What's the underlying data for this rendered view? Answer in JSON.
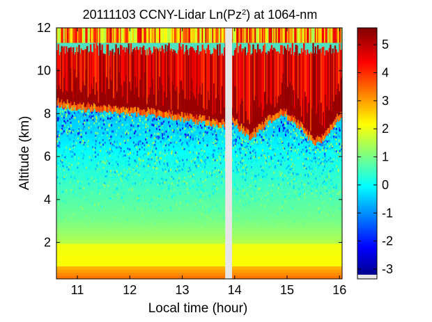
{
  "chart_data": {
    "type": "heatmap",
    "title": "20111103 CCNY-Lidar Ln(Pz",
    "title_superscript": "2",
    "title_suffix": ") at 1064-nm",
    "xlabel": "Local time (hour)",
    "ylabel": "Altitude (km)",
    "xlim": [
      10.6,
      16.05
    ],
    "ylim": [
      0.3,
      12
    ],
    "xticks": [
      11,
      12,
      13,
      14,
      15,
      16
    ],
    "yticks": [
      2,
      4,
      6,
      8,
      10,
      12
    ],
    "colorbar": {
      "range": [
        -3.2,
        5.6
      ],
      "ticks": [
        -3,
        -2,
        -1,
        0,
        1,
        2,
        3,
        4,
        5
      ],
      "colormap": "jet"
    },
    "data_gap": {
      "start": 13.82,
      "end": 13.95,
      "color": "#e6e6e6"
    },
    "cloud_base_km": {
      "x": [
        10.6,
        11.0,
        11.5,
        12.0,
        12.5,
        13.0,
        13.3,
        13.6,
        13.82,
        13.95,
        14.1,
        14.3,
        14.6,
        14.9,
        15.2,
        15.5,
        15.7,
        16.0
      ],
      "values": [
        8.4,
        8.2,
        8.1,
        8.0,
        7.9,
        7.7,
        7.6,
        7.5,
        7.4,
        7.6,
        7.2,
        6.8,
        7.5,
        8.0,
        7.4,
        6.6,
        6.8,
        7.8
      ]
    },
    "cloud_top_km": 11.5,
    "boundary_layer_top_km": 1.9,
    "description_profile": {
      "altitude_km": [
        0.3,
        0.8,
        1.5,
        2.0,
        3.0,
        4.0,
        5.0,
        6.0,
        7.0,
        8.0,
        10.0,
        12.0
      ],
      "ln_pz2": [
        3.6,
        2.6,
        2.2,
        1.6,
        1.1,
        0.8,
        0.5,
        0.2,
        -0.2,
        -0.4,
        5.0,
        4.0
      ]
    }
  }
}
